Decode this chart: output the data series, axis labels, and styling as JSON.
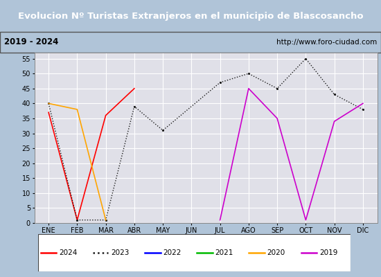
{
  "title": "Evolucion Nº Turistas Extranjeros en el municipio de Blascosancho",
  "subtitle_left": "2019 - 2024",
  "subtitle_right": "http://www.foro-ciudad.com",
  "months": [
    "ENE",
    "FEB",
    "MAR",
    "ABR",
    "MAY",
    "JUN",
    "JUL",
    "AGO",
    "SEP",
    "OCT",
    "NOV",
    "DIC"
  ],
  "ylim": [
    0,
    57
  ],
  "yticks": [
    0,
    5,
    10,
    15,
    20,
    25,
    30,
    35,
    40,
    45,
    50,
    55
  ],
  "series_order": [
    "2024",
    "2023",
    "2022",
    "2021",
    "2020",
    "2019"
  ],
  "series": {
    "2024": {
      "color": "#ff0000",
      "data": [
        37,
        1,
        36,
        45,
        null,
        null,
        null,
        null,
        null,
        null,
        null,
        null
      ],
      "dotted": false
    },
    "2023": {
      "color": "#1a1a1a",
      "data": [
        40,
        1,
        1,
        39,
        31,
        null,
        47,
        50,
        45,
        55,
        43,
        38
      ],
      "dotted": true
    },
    "2022": {
      "color": "#0000ff",
      "data": [
        null,
        null,
        null,
        null,
        null,
        null,
        null,
        null,
        null,
        null,
        null,
        null
      ],
      "dotted": false
    },
    "2021": {
      "color": "#00bb00",
      "data": [
        null,
        null,
        null,
        null,
        null,
        null,
        null,
        null,
        null,
        null,
        null,
        null
      ],
      "dotted": false
    },
    "2020": {
      "color": "#ffa500",
      "data": [
        40,
        38,
        1,
        null,
        null,
        null,
        null,
        null,
        null,
        null,
        null,
        null
      ],
      "dotted": false
    },
    "2019": {
      "color": "#cc00cc",
      "data": [
        null,
        null,
        null,
        null,
        null,
        null,
        1,
        45,
        35,
        1,
        34,
        40
      ],
      "dotted": false
    }
  },
  "title_bg": "#4da6d5",
  "title_color": "#ffffff",
  "subtitle_bg": "#e8e8e8",
  "plot_bg": "#e0e0e8",
  "grid_color": "#ffffff",
  "border_color": "#888888",
  "fig_bg": "#b0c4d8"
}
